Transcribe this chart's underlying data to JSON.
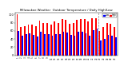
{
  "title": "Milwaukee Weather  Outdoor Temperature / Daily High/Low",
  "highs": [
    100,
    70,
    72,
    76,
    75,
    72,
    85,
    80,
    80,
    76,
    82,
    80,
    88,
    86,
    78,
    80,
    86,
    88,
    88,
    82,
    90,
    90,
    60,
    70,
    80,
    78,
    70
  ],
  "lows": [
    60,
    48,
    52,
    54,
    50,
    46,
    58,
    52,
    52,
    48,
    52,
    52,
    58,
    56,
    50,
    48,
    58,
    58,
    54,
    48,
    62,
    66,
    36,
    40,
    50,
    48,
    44
  ],
  "bar_width": 0.38,
  "high_color": "#ff0000",
  "low_color": "#0000ff",
  "bg_color": "#ffffff",
  "ylim": [
    0,
    105
  ],
  "yticks": [
    0,
    20,
    40,
    60,
    80,
    100
  ],
  "dashed_line_x": 21.5,
  "legend_high": "High",
  "legend_low": "Low"
}
